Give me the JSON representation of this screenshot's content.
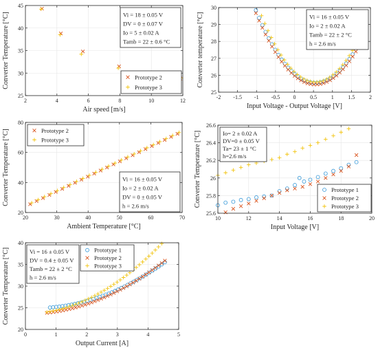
{
  "colors": {
    "prototype_1": "#3a9ad9",
    "prototype_2": "#d9541e",
    "prototype_3": "#f2c40f",
    "axis": "#262626"
  },
  "chart_data": [
    {
      "id": "p1",
      "type": "scatter",
      "xlabel": "Air speed [m/s]",
      "ylabel": "Converter Temperature [°C]",
      "xlim": [
        2,
        12
      ],
      "ylim": [
        25,
        45
      ],
      "xticks": [
        2,
        4,
        6,
        8,
        10,
        12
      ],
      "yticks": [
        25,
        30,
        35,
        40,
        45
      ],
      "grid": true,
      "legend_position": "bottom-right",
      "annotation": [
        "Vi = 18 ± 0.05 V",
        "DV = 0 ± 0.07 V",
        "Io = 5 ± 0.02 A",
        "Tamb = 22 ± 0.6 °C"
      ],
      "series": [
        {
          "name": "Prototype 2",
          "marker": "x",
          "color_key": "prototype_2",
          "x": [
            3.05,
            4.25,
            5.65,
            7.95,
            9.85,
            11.85
          ],
          "y": [
            44.3,
            38.8,
            34.8,
            31.5,
            29.9,
            28.8
          ]
        },
        {
          "name": "Prototype 3",
          "marker": "+",
          "color_key": "prototype_3",
          "x": [
            3.0,
            4.2,
            5.55,
            7.9,
            9.9,
            11.9
          ],
          "y": [
            44.2,
            38.5,
            34.2,
            31.1,
            29.1,
            28.9
          ]
        }
      ]
    },
    {
      "id": "p2",
      "type": "scatter",
      "xlabel": "Input Voltage - Output Voltage [V]",
      "ylabel": "Converter temperature [°C]",
      "xlim": [
        -2,
        2
      ],
      "ylim": [
        25,
        30
      ],
      "xticks": [
        -2,
        -1.5,
        -1,
        -0.5,
        0,
        0.5,
        1,
        1.5,
        2
      ],
      "yticks": [
        25,
        26,
        27,
        28,
        29,
        30
      ],
      "grid": true,
      "legend_position": "none",
      "annotation": [
        "Vi = 16 ± 0.05 V",
        "Io = 2 ± 0.02 A",
        "Tamb = 22 ± 2 °C",
        "h = 2.6 m/s"
      ],
      "curves": [
        {
          "name": "Prototype 1",
          "marker": "o",
          "color_key": "prototype_1",
          "x_start": -1.95,
          "x_end": 1.7,
          "count": 44,
          "a": 1.75,
          "b": 0.55,
          "c": 25.55
        },
        {
          "name": "Prototype 2",
          "marker": "x",
          "color_key": "prototype_2",
          "x_start": -1.95,
          "x_end": 1.7,
          "count": 44,
          "a": 1.72,
          "b": 0.55,
          "c": 25.45
        },
        {
          "name": "Prototype 3",
          "marker": "+",
          "color_key": "prototype_3",
          "x_start": -1.98,
          "x_end": 1.7,
          "count": 44,
          "a": 1.95,
          "b": 0.55,
          "c": 25.6
        }
      ]
    },
    {
      "id": "p3",
      "type": "scatter",
      "xlabel": "Ambient Temperature [°C]",
      "ylabel": "Converter Temperature [°C]",
      "xlim": [
        20,
        70
      ],
      "ylim": [
        20,
        80
      ],
      "xticks": [
        20,
        30,
        40,
        50,
        60,
        70
      ],
      "yticks": [
        20,
        40,
        60,
        80
      ],
      "grid": true,
      "legend_position": "top-left",
      "annotation": [
        "Vi = 16 ± 0.05 V",
        "Io = 2 ± 0.02 A",
        "DV = 0 ± 0.05 V",
        "h = 2.6 m/s"
      ],
      "curves": [
        {
          "name": "Prototype 2",
          "marker": "x",
          "color_key": "prototype_2",
          "x_start": 21.5,
          "x_end": 68.5,
          "count": 24,
          "slope": 0.997,
          "intercept": 4.1
        },
        {
          "name": "Prototype 3",
          "marker": "+",
          "color_key": "prototype_3",
          "x_start": 22.0,
          "x_end": 69.0,
          "count": 24,
          "slope": 0.997,
          "intercept": 4.5
        }
      ]
    },
    {
      "id": "p4",
      "type": "scatter",
      "xlabel": "Input Voltage [V]",
      "ylabel": "Converter Temperature [°C]",
      "xlim": [
        10,
        20
      ],
      "ylim": [
        25.6,
        26.6
      ],
      "xticks": [
        10,
        12,
        14,
        16,
        18,
        20
      ],
      "yticks": [
        25.6,
        25.8,
        26,
        26.2,
        26.4,
        26.6
      ],
      "grid": true,
      "legend_position": "bottom-right",
      "annotation": [
        "Io= 2 ± 0.02 A",
        "DV=0 ± 0.05 V",
        "Ta= 23 ± 1 °C",
        "h=2.6 m/s"
      ],
      "series": [
        {
          "name": "Prototype 1",
          "marker": "o",
          "color_key": "prototype_1",
          "x": [
            10.0,
            10.5,
            11.0,
            11.5,
            12.0,
            12.5,
            13.0,
            13.5,
            14.0,
            14.5,
            15.0,
            15.3,
            15.6,
            16.0,
            16.5,
            17.0,
            17.5,
            18.0,
            18.5,
            19.0
          ],
          "y": [
            25.69,
            25.72,
            25.73,
            25.75,
            25.76,
            25.78,
            25.79,
            25.8,
            25.85,
            25.88,
            25.92,
            26.0,
            25.96,
            25.98,
            26.01,
            26.05,
            26.08,
            26.11,
            26.15,
            26.18
          ]
        },
        {
          "name": "Prototype 2",
          "marker": "x",
          "color_key": "prototype_2",
          "x": [
            10.0,
            10.5,
            11.0,
            11.5,
            12.0,
            12.5,
            13.0,
            13.5,
            14.0,
            14.5,
            15.0,
            15.5,
            16.0,
            16.5,
            17.0,
            17.5,
            18.0,
            18.5,
            19.0
          ],
          "y": [
            25.58,
            25.61,
            25.65,
            25.68,
            25.71,
            25.74,
            25.77,
            25.8,
            25.83,
            25.86,
            25.88,
            25.9,
            25.93,
            25.96,
            26.0,
            26.04,
            26.08,
            26.13,
            26.26
          ]
        },
        {
          "name": "Prototype 3",
          "marker": "+",
          "color_key": "prototype_3",
          "x": [
            10.0,
            10.5,
            11.0,
            11.5,
            12.0,
            12.5,
            13.0,
            13.5,
            14.0,
            14.5,
            15.0,
            15.5,
            16.0,
            16.5,
            17.0,
            17.5,
            18.0,
            18.5,
            19.0
          ],
          "y": [
            26.03,
            26.06,
            26.09,
            26.12,
            26.15,
            26.17,
            26.19,
            26.21,
            26.23,
            26.27,
            26.3,
            26.34,
            26.37,
            26.4,
            26.44,
            26.48,
            26.52,
            26.56,
            26.61
          ]
        }
      ]
    },
    {
      "id": "p5",
      "type": "scatter",
      "xlabel": "Output Current [A]",
      "ylabel": "Converter Temperature [°C]",
      "xlim": [
        0,
        5
      ],
      "ylim": [
        20,
        40
      ],
      "xticks": [
        0,
        1,
        2,
        3,
        4,
        5
      ],
      "yticks": [
        20,
        25,
        30,
        35,
        40
      ],
      "grid": true,
      "legend_position": "top-right",
      "annotation": [
        "Vi = 16 ± 0.05 V",
        "DV = 0.4 ± 0.05 V",
        "Tamb = 22 ± 2 °C",
        "h = 2.6 m/s"
      ],
      "curves": [
        {
          "name": "Prototype 1",
          "marker": "o",
          "color_key": "prototype_1",
          "x_start": 0.8,
          "x_end": 4.55,
          "count": 38,
          "a": 0.6,
          "b": 0.35,
          "c": 24.93
        },
        {
          "name": "Prototype 2",
          "marker": "x",
          "color_key": "prototype_2",
          "x_start": 0.7,
          "x_end": 4.55,
          "count": 38,
          "a": 0.62,
          "b": 0.1,
          "c": 23.6
        },
        {
          "name": "Prototype 3",
          "marker": "+",
          "color_key": "prototype_3",
          "x_start": 0.7,
          "x_end": 4.55,
          "count": 38,
          "a": 0.82,
          "b": 0.0,
          "c": 23.6
        }
      ]
    }
  ]
}
